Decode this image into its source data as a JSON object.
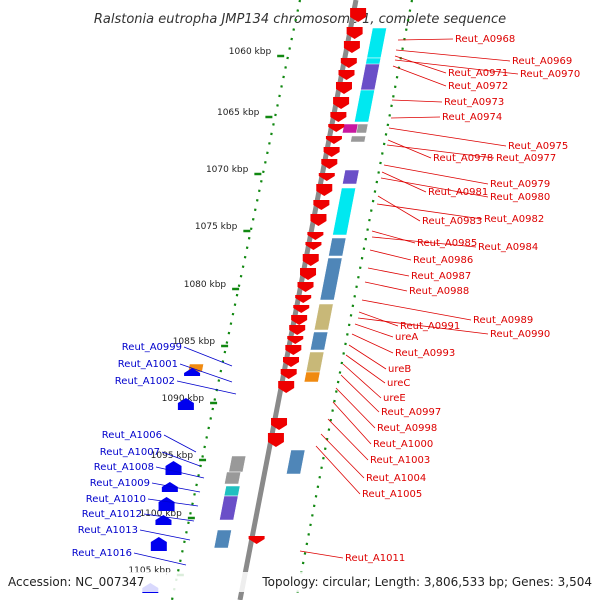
{
  "title": "Ralstonia eutropha JMP134 chromosome 1, complete sequence",
  "footer": {
    "accession": "Accession: NC_007347",
    "topology": "Topology: circular; Length: 3,806,533 bp; Genes: 3,504"
  },
  "colors": {
    "forward_label": "#dd0000",
    "reverse_label": "#0000cc",
    "forward_gene": "#ee0000",
    "reverse_gene": "#0000ee",
    "tick": "#118811",
    "backbone": "#888888",
    "cyan": "#00e8f0",
    "steel": "#4f86b8",
    "khaki": "#c8b878",
    "purple": "#6a4fc8",
    "orange": "#f08a10",
    "gray": "#999999",
    "magenta": "#c818a0"
  },
  "kbp_ticks": [
    {
      "label": "1060 kbp"
    },
    {
      "label": "1065 kbp"
    },
    {
      "label": "1070 kbp"
    },
    {
      "label": "1075 kbp"
    },
    {
      "label": "1080 kbp"
    },
    {
      "label": "1085 kbp"
    },
    {
      "label": "1090 kbp"
    },
    {
      "label": "1095 kbp"
    },
    {
      "label": "1100 kbp"
    },
    {
      "label": "1105 kbp"
    }
  ],
  "forward_labels": [
    "Reut_A0968",
    "Reut_A0969",
    "Reut_A0971",
    "Reut_A0970",
    "Reut_A0972",
    "Reut_A0973",
    "Reut_A0974",
    "Reut_A0975",
    "Reut_A0978",
    "Reut_A0977",
    "Reut_A0979",
    "Reut_A0981",
    "Reut_A0980",
    "Reut_A0983",
    "Reut_A0982",
    "Reut_A0985",
    "Reut_A0984",
    "Reut_A0986",
    "Reut_A0987",
    "Reut_A0988",
    "Reut_A0989",
    "Reut_A0991",
    "Reut_A0990",
    "ureA",
    "Reut_A0993",
    "ureB",
    "ureC",
    "ureE",
    "Reut_A0997",
    "Reut_A0998",
    "Reut_A1000",
    "Reut_A1003",
    "Reut_A1004",
    "Reut_A1005",
    "Reut_A1011"
  ],
  "reverse_labels": [
    "Reut_A0999",
    "Reut_A1001",
    "Reut_A1002",
    "Reut_A1006",
    "Reut_A1007",
    "Reut_A1008",
    "Reut_A1009",
    "Reut_A1010",
    "Reut_A1012",
    "Reut_A1013",
    "Reut_A1016"
  ]
}
